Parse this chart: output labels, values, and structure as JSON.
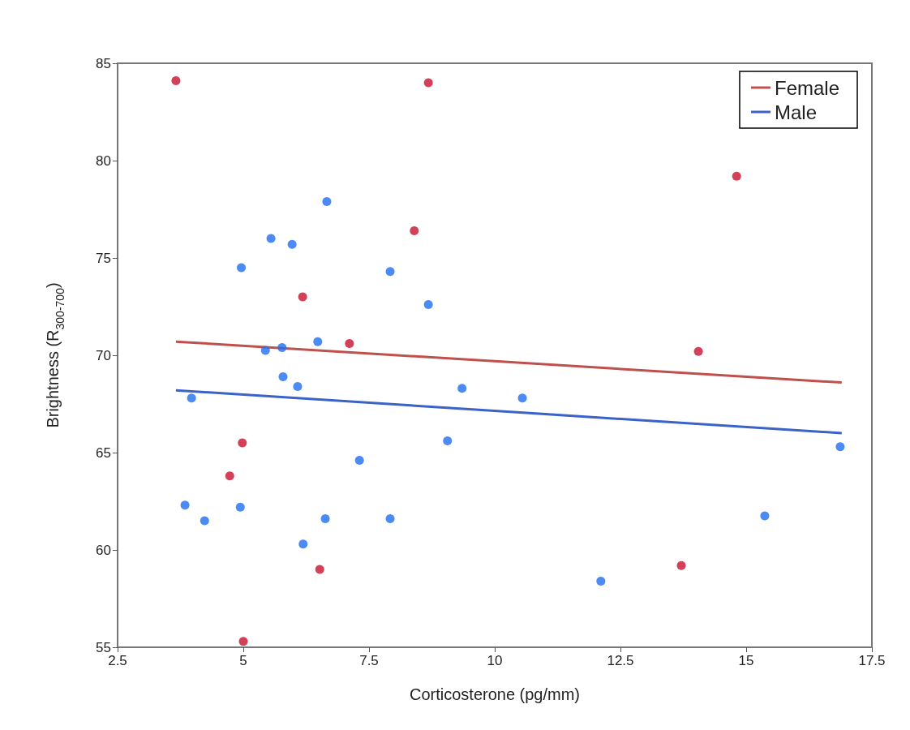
{
  "chart_data": {
    "type": "scatter",
    "xlabel": "Corticosterone (pg/mm)",
    "ylabel": "Brightness (R$_{300-700}$)",
    "xlim": [
      2.5,
      17.5
    ],
    "xticks": [
      2.5,
      5,
      7.5,
      10,
      12.5,
      15,
      17.5
    ],
    "ylim": [
      55,
      85
    ],
    "yticks": [
      55,
      60,
      65,
      70,
      75,
      80,
      85
    ],
    "grid": false,
    "legend": "top right",
    "marker": "circle",
    "series": [
      {
        "color": "#c8102e",
        "x": [
          3.66,
          8.68,
          14.81,
          8.4,
          6.18,
          7.11,
          14.05,
          4.98,
          4.73,
          6.52,
          13.71,
          5.0
        ],
        "values": [
          84.1,
          84.0,
          79.2,
          76.4,
          73.0,
          70.6,
          70.2,
          65.5,
          63.8,
          59.0,
          59.2,
          55.3
        ]
      },
      {
        "color": "#1f6ef0",
        "x": [
          6.66,
          5.55,
          5.97,
          4.96,
          7.92,
          8.68,
          6.48,
          5.44,
          5.77,
          3.97,
          5.79,
          6.08,
          9.35,
          10.55,
          9.06,
          7.31,
          16.87,
          3.84,
          4.94,
          4.23,
          6.63,
          7.92,
          15.37,
          6.19,
          12.11
        ],
        "values": [
          77.9,
          76.0,
          75.7,
          74.5,
          74.3,
          72.6,
          70.7,
          70.25,
          70.4,
          67.8,
          68.9,
          68.4,
          68.3,
          67.8,
          65.6,
          64.6,
          65.3,
          62.3,
          62.2,
          61.5,
          61.6,
          61.6,
          61.75,
          60.3,
          58.4
        ]
      },
      {
        "type": "line",
        "name": "Female",
        "color": "#c0504d",
        "marker": "none",
        "x": [
          3.66,
          16.9
        ],
        "values": [
          70.7,
          68.6
        ]
      },
      {
        "type": "line",
        "name": "Male",
        "color": "#3a62c8",
        "marker": "none",
        "x": [
          3.66,
          16.9
        ],
        "values": [
          68.2,
          66.0
        ]
      }
    ]
  }
}
